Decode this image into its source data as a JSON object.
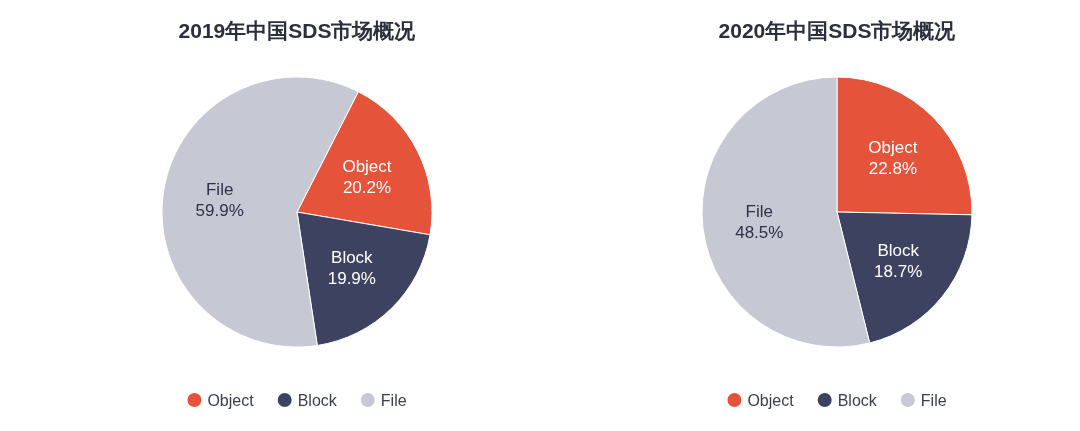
{
  "chart_data": [
    {
      "type": "pie",
      "title": "2019年中国SDS市场概况",
      "categories": [
        "Object",
        "Block",
        "File"
      ],
      "values": [
        20.2,
        19.9,
        59.9
      ],
      "colors": [
        "#e5533a",
        "#3d4260",
        "#c6c8d3"
      ],
      "value_labels": [
        "20.2%",
        "19.9%",
        "59.9%"
      ],
      "legend": "bottom"
    },
    {
      "type": "pie",
      "title": "2020年中国SDS市场概况",
      "categories": [
        "Object",
        "Block",
        "File"
      ],
      "values": [
        22.8,
        18.7,
        48.5
      ],
      "colors": [
        "#e5533a",
        "#3d4260",
        "#c6c8d3"
      ],
      "value_labels": [
        "22.8%",
        "18.7%",
        "48.5%"
      ],
      "legend": "bottom"
    }
  ]
}
